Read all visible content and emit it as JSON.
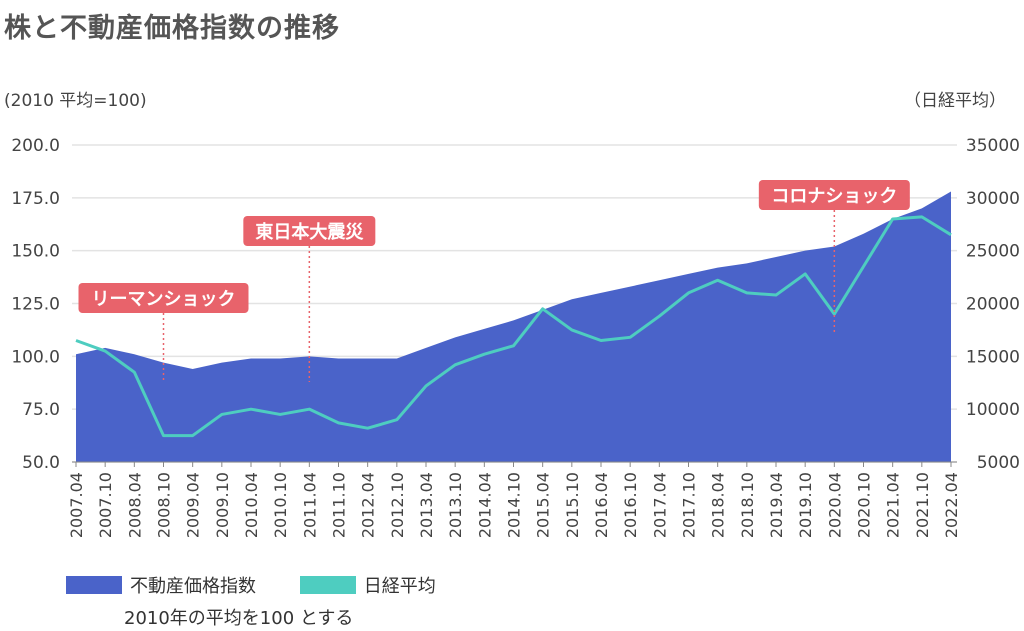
{
  "title": "株と不動産価格指数の推移",
  "left_unit": "(2010 平均=100)",
  "right_unit": "（日経平均）",
  "note": "2010年の平均を100 とする",
  "colors": {
    "area": "#4a63c9",
    "line": "#4ecdc0",
    "annotation": "#e8636b",
    "grid": "#e3e3e3"
  },
  "chart_data": {
    "type": "area+line",
    "y_left": {
      "min": 50,
      "max": 200,
      "ticks": [
        "50.0",
        "75.0",
        "100.0",
        "125.0",
        "150.0",
        "175.0",
        "200.0"
      ]
    },
    "y_right": {
      "min": 5000,
      "max": 35000,
      "ticks": [
        "5000",
        "10000",
        "15000",
        "20000",
        "25000",
        "30000",
        "35000"
      ]
    },
    "x_labels": [
      "2007.04",
      "2007.10",
      "2008.04",
      "2008.10",
      "2009.04",
      "2009.10",
      "2010.04",
      "2010.10",
      "2011.04",
      "2011.10",
      "2012.04",
      "2012.10",
      "2013.04",
      "2013.10",
      "2014.04",
      "2014.10",
      "2015.04",
      "2015.10",
      "2016.04",
      "2016.10",
      "2017.04",
      "2017.10",
      "2018.04",
      "2018.10",
      "2019.04",
      "2019.10",
      "2020.04",
      "2020.10",
      "2021.04",
      "2021.10",
      "2022.04"
    ],
    "series": [
      {
        "name": "不動産価格指数",
        "axis": "left",
        "type": "area",
        "values": [
          101,
          104,
          101,
          97,
          94,
          97,
          99,
          99,
          100,
          99,
          99,
          99,
          104,
          109,
          113,
          117,
          122,
          127,
          130,
          133,
          136,
          139,
          142,
          144,
          147,
          150,
          152,
          158,
          165,
          170,
          178
        ]
      },
      {
        "name": "日経平均",
        "axis": "right",
        "type": "line",
        "values": [
          16500,
          15500,
          13500,
          7500,
          7500,
          9500,
          10000,
          9500,
          10000,
          8700,
          8200,
          9000,
          12200,
          14200,
          15200,
          16000,
          19500,
          17500,
          16500,
          16800,
          18800,
          21000,
          22200,
          21000,
          20800,
          22800,
          19000,
          23500,
          28000,
          28200,
          26500
        ]
      }
    ],
    "annotations": [
      {
        "label": "リーマンショック",
        "x_index": 3.0
      },
      {
        "label": "東日本大震災",
        "x_index": 8.0
      },
      {
        "label": "コロナショック",
        "x_index": 26.0
      }
    ]
  }
}
